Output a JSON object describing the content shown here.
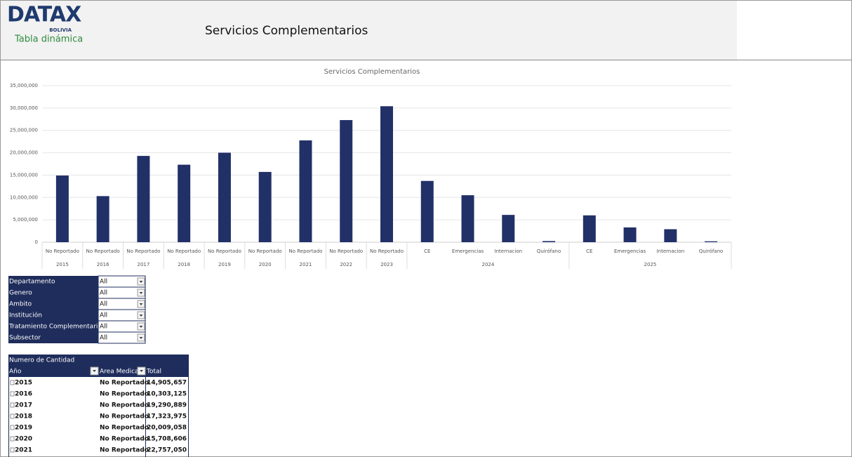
{
  "header": {
    "logo": "DATAX",
    "logo_sub": "BOLIVIA",
    "subtitle": "Tabla dinámica",
    "title": "Servicios Complementarios"
  },
  "chart_data": {
    "type": "bar",
    "title": "Servicios Complementarios",
    "color": "#223068",
    "ylim": [
      0,
      35000000
    ],
    "yticks": [
      0,
      {
        "value": 5000000,
        "label": "5,000,000"
      },
      {
        "value": 10000000,
        "label": "10,000,000"
      },
      {
        "value": 15000000,
        "label": "15,000,000"
      },
      {
        "value": 20000000,
        "label": "20,000,000"
      },
      {
        "value": 25000000,
        "label": "25,000,000"
      },
      {
        "value": 30000000,
        "label": "30,000,000"
      },
      {
        "value": 35000000,
        "label": "35,000,000"
      }
    ],
    "grid": true,
    "groups": [
      {
        "name": "2015",
        "categories": [
          "No Reportado"
        ],
        "values": [
          14905657
        ]
      },
      {
        "name": "2016",
        "categories": [
          "No Reportado"
        ],
        "values": [
          10303125
        ]
      },
      {
        "name": "2017",
        "categories": [
          "No Reportado"
        ],
        "values": [
          19290889
        ]
      },
      {
        "name": "2018",
        "categories": [
          "No Reportado"
        ],
        "values": [
          17323975
        ]
      },
      {
        "name": "2019",
        "categories": [
          "No Reportado"
        ],
        "values": [
          20009058
        ]
      },
      {
        "name": "2020",
        "categories": [
          "No Reportado"
        ],
        "values": [
          15708606
        ]
      },
      {
        "name": "2021",
        "categories": [
          "No Reportado"
        ],
        "values": [
          22757050
        ]
      },
      {
        "name": "2022",
        "categories": [
          "No Reportado"
        ],
        "values": [
          27300000
        ]
      },
      {
        "name": "2023",
        "categories": [
          "No Reportado"
        ],
        "values": [
          30400000
        ]
      },
      {
        "name": "2024",
        "categories": [
          "CE",
          "Emergencias",
          "Internacion",
          "Quirófano"
        ],
        "values": [
          13700000,
          10500000,
          6100000,
          250000
        ]
      },
      {
        "name": "2025",
        "categories": [
          "CE",
          "Emergencias",
          "Internacion",
          "Quirófano"
        ],
        "values": [
          6000000,
          3300000,
          2900000,
          200000
        ]
      }
    ]
  },
  "filters": [
    {
      "label": "Departamento",
      "value": "All"
    },
    {
      "label": "Genero",
      "value": "All"
    },
    {
      "label": "Ambito",
      "value": "All"
    },
    {
      "label": "Institución",
      "value": "All"
    },
    {
      "label": "Tratamiento Complementari",
      "value": "All"
    },
    {
      "label": "Subsector",
      "value": "All"
    }
  ],
  "pivot": {
    "title": "Numero de Cantidad",
    "columns": [
      "Año",
      "Area Medica",
      "Total"
    ],
    "rows": [
      [
        "2015",
        "No Reportado",
        "14,905,657"
      ],
      [
        "2016",
        "No Reportado",
        "10,303,125"
      ],
      [
        "2017",
        "No Reportado",
        "19,290,889"
      ],
      [
        "2018",
        "No Reportado",
        "17,323,975"
      ],
      [
        "2019",
        "No Reportado",
        "20,009,058"
      ],
      [
        "2020",
        "No Reportado",
        "15,708,606"
      ],
      [
        "2021",
        "No Reportado",
        "22,757,050"
      ]
    ]
  }
}
